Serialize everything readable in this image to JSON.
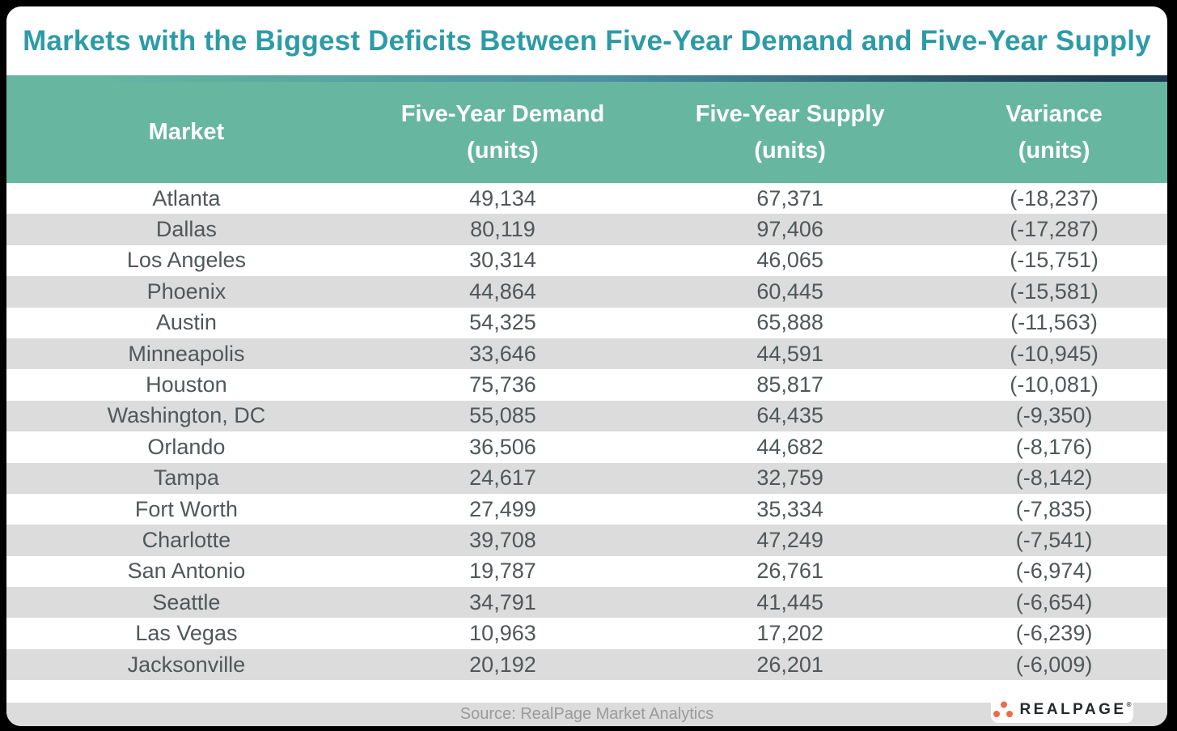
{
  "title": "Markets with the Biggest Deficits Between Five-Year Demand and Five-Year Supply",
  "columns": [
    {
      "label": "Market",
      "sub": ""
    },
    {
      "label": "Five-Year Demand",
      "sub": "(units)"
    },
    {
      "label": "Five-Year Supply",
      "sub": "(units)"
    },
    {
      "label": "Variance",
      "sub": "(units)"
    }
  ],
  "table": {
    "row_keys": [
      "market",
      "demand",
      "supply",
      "variance"
    ],
    "rows": [
      {
        "market": "Atlanta",
        "demand": "49,134",
        "supply": "67,371",
        "variance": "(-18,237)"
      },
      {
        "market": "Dallas",
        "demand": "80,119",
        "supply": "97,406",
        "variance": "(-17,287)"
      },
      {
        "market": "Los Angeles",
        "demand": "30,314",
        "supply": "46,065",
        "variance": "(-15,751)"
      },
      {
        "market": "Phoenix",
        "demand": "44,864",
        "supply": "60,445",
        "variance": "(-15,581)"
      },
      {
        "market": "Austin",
        "demand": "54,325",
        "supply": "65,888",
        "variance": "(-11,563)"
      },
      {
        "market": "Minneapolis",
        "demand": "33,646",
        "supply": "44,591",
        "variance": "(-10,945)"
      },
      {
        "market": "Houston",
        "demand": "75,736",
        "supply": "85,817",
        "variance": "(-10,081)"
      },
      {
        "market": "Washington, DC",
        "demand": "55,085",
        "supply": "64,435",
        "variance": "(-9,350)"
      },
      {
        "market": "Orlando",
        "demand": "36,506",
        "supply": "44,682",
        "variance": "(-8,176)"
      },
      {
        "market": "Tampa",
        "demand": "24,617",
        "supply": "32,759",
        "variance": "(-8,142)"
      },
      {
        "market": "Fort Worth",
        "demand": "27,499",
        "supply": "35,334",
        "variance": "(-7,835)"
      },
      {
        "market": "Charlotte",
        "demand": "39,708",
        "supply": "47,249",
        "variance": "(-7,541)"
      },
      {
        "market": "San Antonio",
        "demand": "19,787",
        "supply": "26,761",
        "variance": "(-6,974)"
      },
      {
        "market": "Seattle",
        "demand": "34,791",
        "supply": "41,445",
        "variance": "(-6,654)"
      },
      {
        "market": "Las Vegas",
        "demand": "10,963",
        "supply": "17,202",
        "variance": "(-6,239)"
      },
      {
        "market": "Jacksonville",
        "demand": "20,192",
        "supply": "26,201",
        "variance": "(-6,009)"
      }
    ]
  },
  "footer": {
    "source": "Source: RealPage Market Analytics",
    "logo_text": "REALPAGE",
    "logo_reg_mark": "®"
  },
  "colors": {
    "title_teal": "#2D9BA6",
    "header_green": "#67B6A0",
    "gradient_navy": "#1E3A50",
    "row_alt_gray": "#DCDCDC",
    "row_text": "#50575A",
    "source_text": "#9A9A9A",
    "logo_orange": "#EC6C4B",
    "outer_background": "#000000"
  },
  "chart_data": {
    "type": "table",
    "title": "Markets with the Biggest Deficits Between Five-Year Demand and Five-Year Supply",
    "columns": [
      "Market",
      "Five-Year Demand (units)",
      "Five-Year Supply (units)",
      "Variance (units)"
    ],
    "rows": [
      [
        "Atlanta",
        49134,
        67371,
        -18237
      ],
      [
        "Dallas",
        80119,
        97406,
        -17287
      ],
      [
        "Los Angeles",
        30314,
        46065,
        -15751
      ],
      [
        "Phoenix",
        44864,
        60445,
        -15581
      ],
      [
        "Austin",
        54325,
        65888,
        -11563
      ],
      [
        "Minneapolis",
        33646,
        44591,
        -10945
      ],
      [
        "Houston",
        75736,
        85817,
        -10081
      ],
      [
        "Washington, DC",
        55085,
        64435,
        -9350
      ],
      [
        "Orlando",
        36506,
        44682,
        -8176
      ],
      [
        "Tampa",
        24617,
        32759,
        -8142
      ],
      [
        "Fort Worth",
        27499,
        35334,
        -7835
      ],
      [
        "Charlotte",
        39708,
        47249,
        -7541
      ],
      [
        "San Antonio",
        19787,
        26761,
        -6974
      ],
      [
        "Seattle",
        34791,
        41445,
        -6654
      ],
      [
        "Las Vegas",
        10963,
        17202,
        -6239
      ],
      [
        "Jacksonville",
        20192,
        26201,
        -6009
      ]
    ],
    "source": "Source: RealPage Market Analytics"
  }
}
